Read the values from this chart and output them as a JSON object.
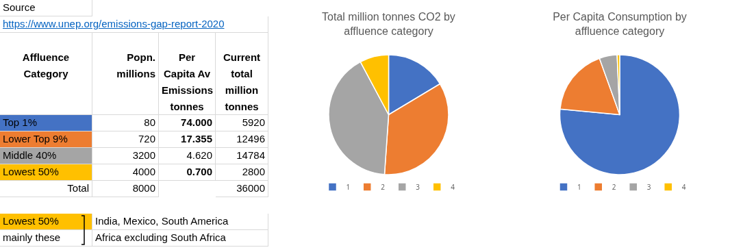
{
  "chart_data": [
    {
      "type": "other",
      "colors": [
        "#4472c4",
        "#ed7d31",
        "#a5a5a5",
        "#ffc000"
      ],
      "annotations": [
        "Source",
        "https://www.unep.org/emissions-gap-report-2020",
        "Affluence Category",
        "Popn. millions",
        "Per Capita Av Emissions tonnes",
        "Current total million tonnes",
        "Top 1%",
        "80",
        "74.000",
        "5920",
        "Lower Top 9%",
        "720",
        "17.355",
        "12496",
        "Middle 40%",
        "3200",
        "4.620",
        "14784",
        "Lowest 50%",
        "4000",
        "0.700",
        "2800",
        "Total",
        "8000",
        "36000",
        "Lowest 50%",
        "mainly these",
        "India, Mexico, South America",
        "Africa excluding South Africa"
      ]
    },
    {
      "type": "pie",
      "title": "Total million tonnes CO2 by affluence category",
      "categories": [
        "1",
        "2",
        "3",
        "4"
      ],
      "values": [
        16.4,
        34.7,
        41.1,
        7.8
      ],
      "colors": [
        "#4472c4",
        "#ed7d31",
        "#a5a5a5",
        "#ffc000"
      ],
      "legend": "bottom"
    },
    {
      "type": "pie",
      "title": "Per Capita Consumption by affluence category",
      "categories": [
        "1",
        "2",
        "3",
        "4"
      ],
      "values": [
        76.5,
        18.0,
        4.8,
        0.7
      ],
      "colors": [
        "#4472c4",
        "#ed7d31",
        "#a5a5a5",
        "#ffc000"
      ],
      "legend": "bottom"
    }
  ]
}
